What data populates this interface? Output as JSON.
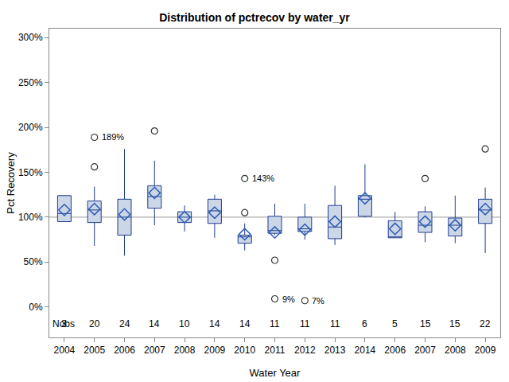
{
  "chart_data": {
    "type": "box",
    "title": "Distribution of pctrecov by water_yr",
    "x_label": "Water Year",
    "y_label": "Pct Recovery",
    "categories": [
      "2004",
      "2005",
      "2006",
      "2007",
      "2008",
      "2009",
      "2010",
      "2011",
      "2012",
      "2013",
      "2014",
      "2006",
      "2007",
      "2008",
      "2009"
    ],
    "q1": [
      95,
      94,
      80,
      110,
      94,
      93,
      71,
      82,
      84,
      76,
      101,
      77,
      83,
      79,
      93
    ],
    "median": [
      104,
      108,
      100,
      123,
      100,
      107,
      78,
      85,
      87,
      89,
      120,
      78,
      91,
      91,
      108
    ],
    "q3": [
      124,
      118,
      120,
      135,
      106,
      120,
      80,
      101,
      100,
      113,
      124,
      96,
      106,
      99,
      120
    ],
    "whisker_low": [
      95,
      68,
      57,
      91,
      84,
      77,
      63,
      80,
      75,
      69,
      100,
      77,
      72,
      71,
      60
    ],
    "whisker_high": [
      124,
      134,
      176,
      163,
      113,
      125,
      93,
      115,
      115,
      135,
      159,
      106,
      112,
      124,
      133
    ],
    "mean": [
      108,
      109,
      103,
      127,
      100,
      105,
      81,
      83,
      86,
      95,
      121,
      87,
      95,
      91,
      109
    ],
    "outliers": [
      [],
      [
        156,
        189
      ],
      [],
      [
        196
      ],
      [],
      [],
      [
        105,
        143
      ],
      [
        52,
        9
      ],
      [
        7
      ],
      [],
      [],
      [],
      [
        143
      ],
      [],
      [
        176
      ]
    ],
    "outlier_labels": [
      {
        "index": 1,
        "value": 189,
        "label": "189%"
      },
      {
        "index": 6,
        "value": 143,
        "label": "143%"
      },
      {
        "index": 7,
        "value": 9,
        "label": "9%"
      },
      {
        "index": 8,
        "value": 7,
        "label": "7%"
      }
    ],
    "nobs_label": "Nobs",
    "nobs": [
      3,
      20,
      24,
      14,
      10,
      14,
      14,
      11,
      11,
      11,
      6,
      5,
      15,
      15,
      22
    ],
    "reference_line": 100,
    "color": "#cbd6e6",
    "ylim": [
      -34,
      310
    ],
    "yticks": [
      {
        "value": 0,
        "label": "0%"
      },
      {
        "value": 50,
        "label": "50%"
      },
      {
        "value": 100,
        "label": "100%"
      },
      {
        "value": 150,
        "label": "150%"
      },
      {
        "value": 200,
        "label": "200%"
      },
      {
        "value": 250,
        "label": "250%"
      },
      {
        "value": 300,
        "label": "300%"
      }
    ],
    "grid": false
  }
}
